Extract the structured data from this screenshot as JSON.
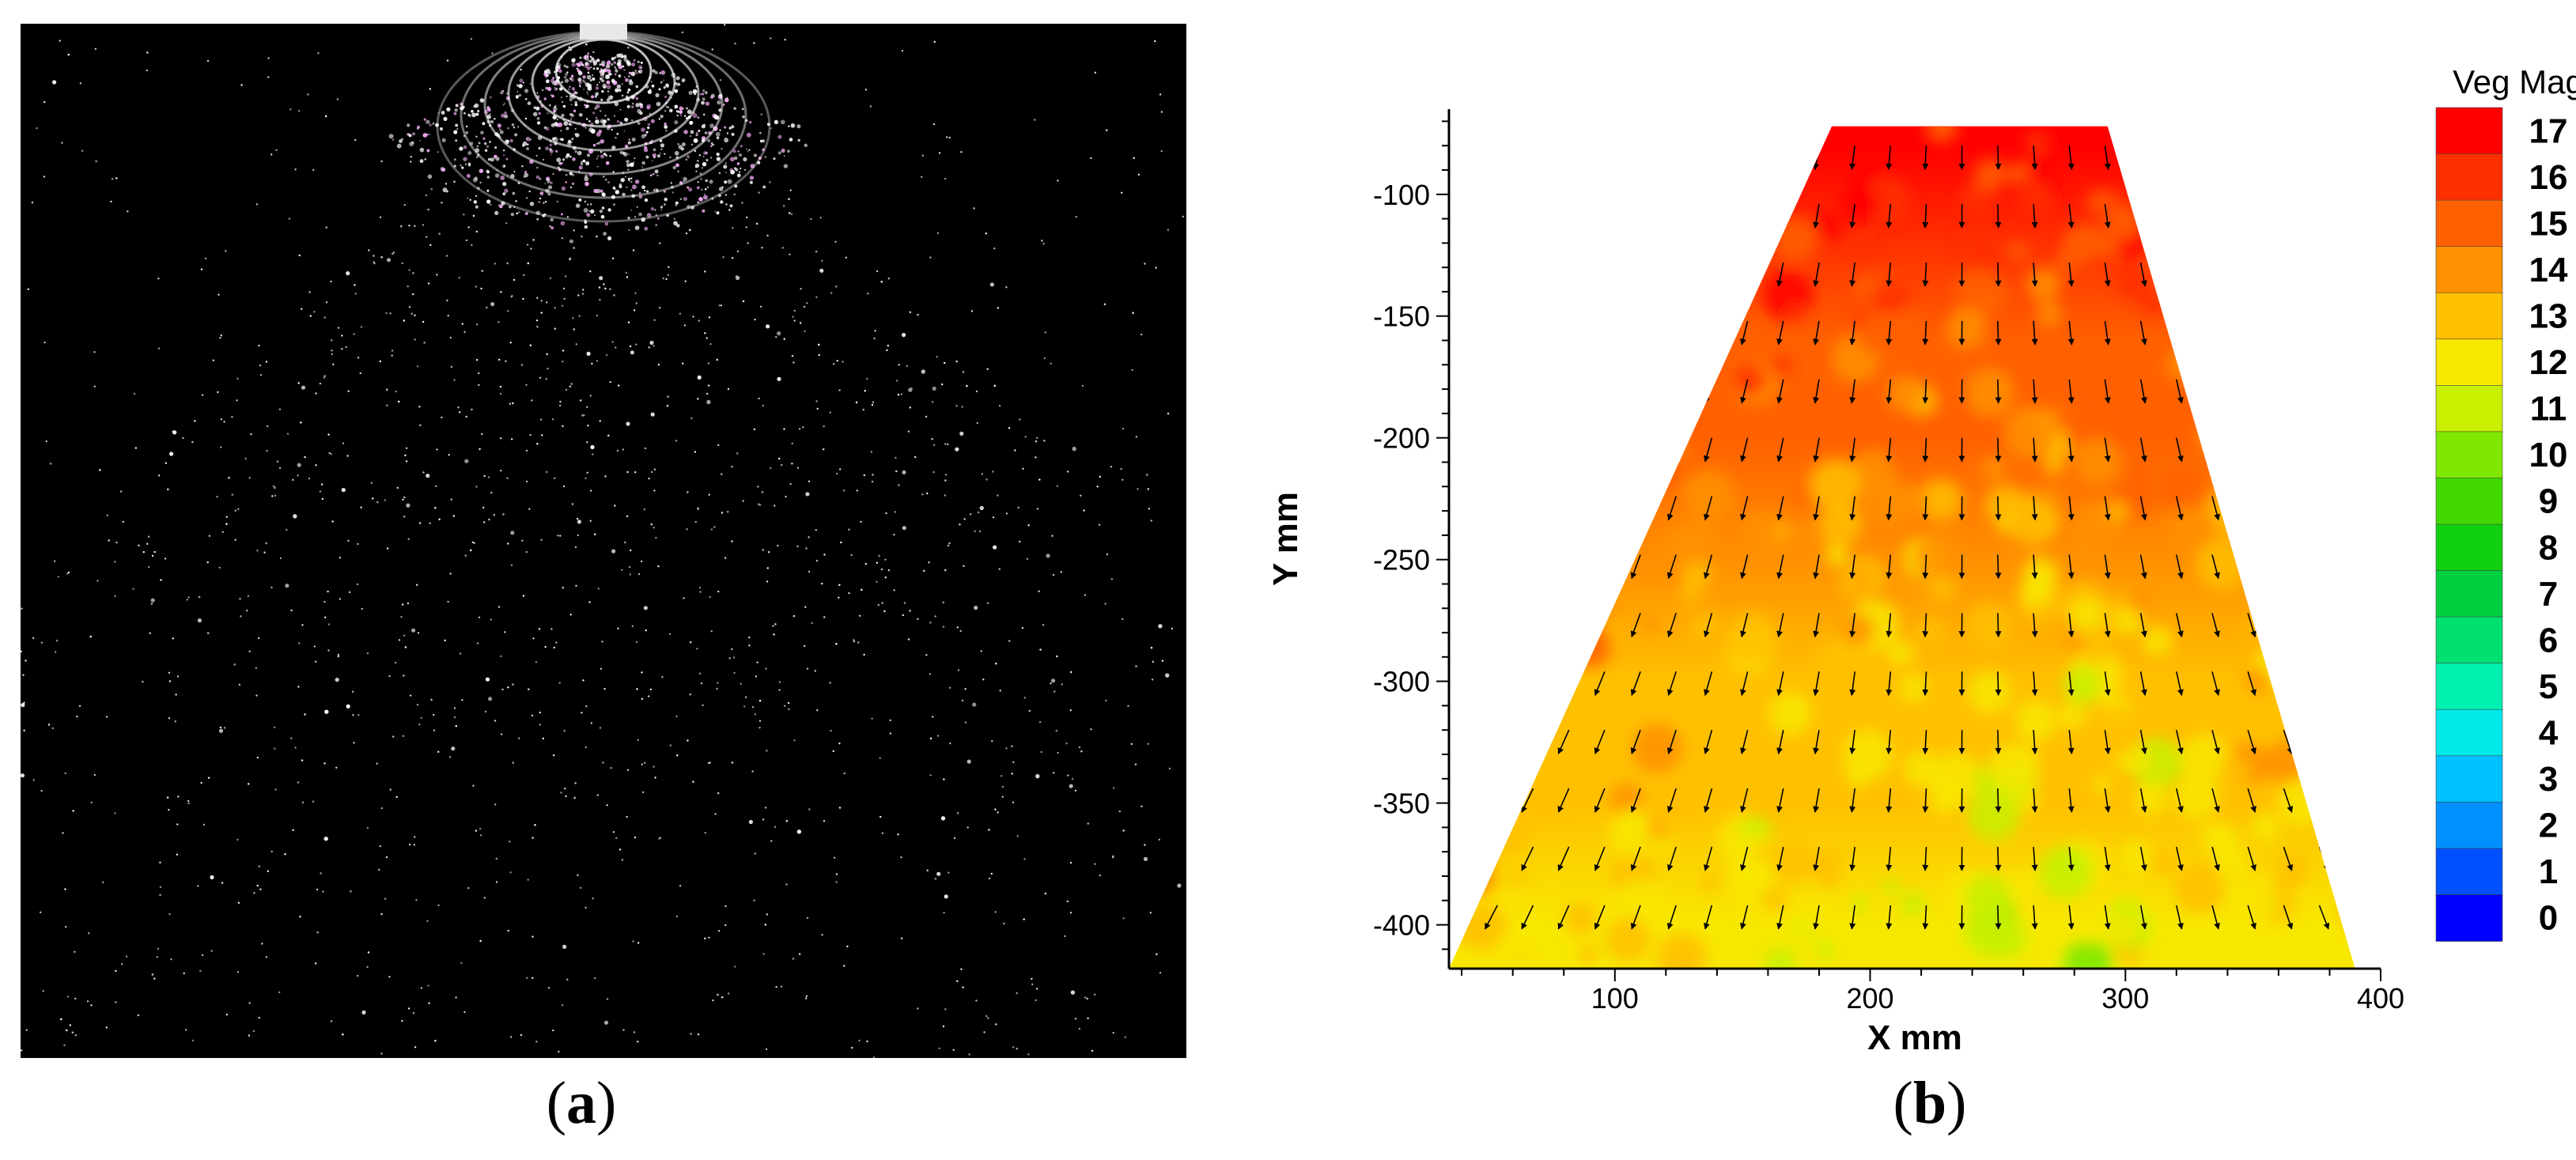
{
  "captions": {
    "panel_a": {
      "open": "(",
      "letter": "a",
      "close": ")"
    },
    "panel_b": {
      "open": "(",
      "letter": "b",
      "close": ")"
    }
  },
  "chart_data": {
    "type": "heatmap",
    "title": "",
    "xlabel": "X mm",
    "ylabel": "Y mm",
    "xlim": [
      35,
      400
    ],
    "ylim": [
      -418,
      -65
    ],
    "x_ticks": [
      100,
      200,
      300,
      400
    ],
    "y_ticks": [
      -100,
      -150,
      -200,
      -250,
      -300,
      -350,
      -400
    ],
    "colorbar": {
      "label": "Veg Mag",
      "levels": [
        0,
        1,
        2,
        3,
        4,
        5,
        6,
        7,
        8,
        9,
        10,
        11,
        12,
        13,
        14,
        15,
        16,
        17
      ],
      "colors": [
        "#0000ff",
        "#0050ff",
        "#0090ff",
        "#00c0ff",
        "#00eaea",
        "#00f0b0",
        "#00e070",
        "#00d040",
        "#10d010",
        "#40d800",
        "#80e800",
        "#c8f000",
        "#f8e800",
        "#ffc000",
        "#ff9000",
        "#ff6000",
        "#ff3000",
        "#ff0000"
      ]
    },
    "domain": {
      "top_y": -72,
      "bottom_y": -418,
      "top_x": [
        185,
        293
      ],
      "bottom_x": [
        35,
        390
      ]
    },
    "field_trend": [
      {
        "y": -80,
        "value": 17
      },
      {
        "y": -120,
        "value": 16.3
      },
      {
        "y": -160,
        "value": 15.4
      },
      {
        "y": -200,
        "value": 14.8
      },
      {
        "y": -250,
        "value": 13.8
      },
      {
        "y": -300,
        "value": 13
      },
      {
        "y": -350,
        "value": 12.5
      },
      {
        "y": -400,
        "value": 12
      }
    ],
    "vectors": "Velocity vectors pointing downward, spreading outward with distance from the center line"
  }
}
